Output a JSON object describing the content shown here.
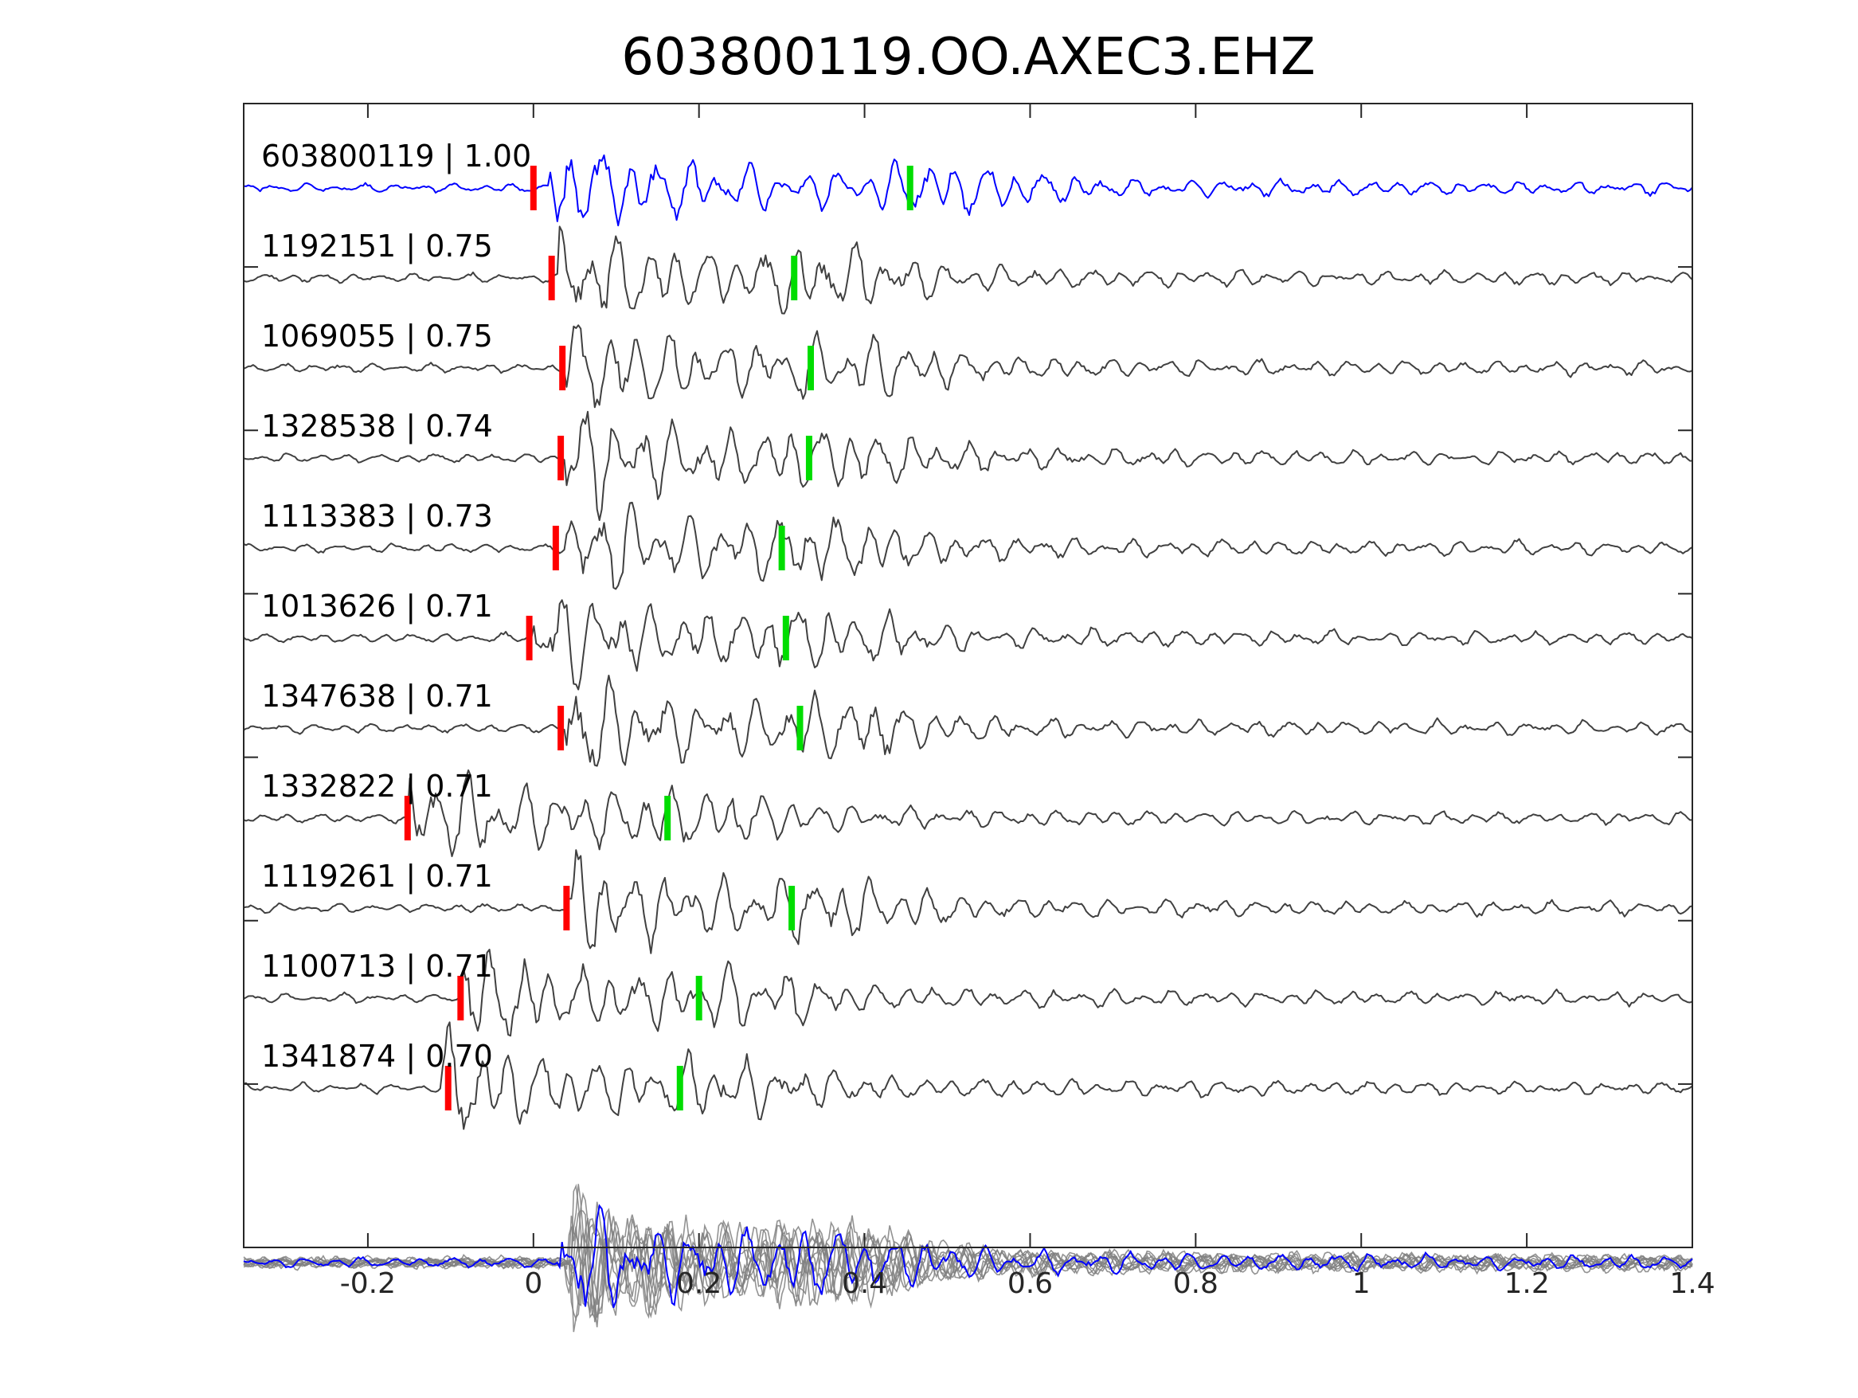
{
  "colors": {
    "template": "#0000ff",
    "matches": "#404040",
    "stack": "#808080",
    "p_pick": "#ff0000",
    "s_pick": "#00dd00",
    "axes": "#262626",
    "background": "#ffffff"
  },
  "chart_data": {
    "type": "line",
    "title": "603800119.OO.AXEC3.EHZ",
    "xlabel": "",
    "ylabel": "",
    "xlim": [
      -0.35,
      1.4
    ],
    "xticks": [
      -0.2,
      0,
      0.2,
      0.4,
      0.6,
      0.8,
      1,
      1.2,
      1.4
    ],
    "xtick_labels": [
      "-0.2",
      "0",
      "0.2",
      "0.4",
      "0.6",
      "0.8",
      "1",
      "1.2",
      "1.4"
    ],
    "grid": false,
    "legend": "none",
    "series": [
      {
        "label": "603800119 | 1.00",
        "id": "603800119",
        "cc": 1.0,
        "p_pick": 0.0,
        "s_pick": 0.455,
        "onset": 0.02,
        "seed": 11,
        "role": "template"
      },
      {
        "label": "1192151 | 0.75",
        "id": "1192151",
        "cc": 0.75,
        "p_pick": 0.022,
        "s_pick": 0.315,
        "onset": 0.03,
        "seed": 23,
        "role": "match"
      },
      {
        "label": "1069055 | 0.75",
        "id": "1069055",
        "cc": 0.75,
        "p_pick": 0.035,
        "s_pick": 0.335,
        "onset": 0.04,
        "seed": 37,
        "role": "match"
      },
      {
        "label": "1328538 | 0.74",
        "id": "1328538",
        "cc": 0.74,
        "p_pick": 0.033,
        "s_pick": 0.333,
        "onset": 0.04,
        "seed": 41,
        "role": "match"
      },
      {
        "label": "1113383 | 0.73",
        "id": "1113383",
        "cc": 0.73,
        "p_pick": 0.027,
        "s_pick": 0.3,
        "onset": 0.04,
        "seed": 53,
        "role": "match"
      },
      {
        "label": "1013626 | 0.71",
        "id": "1013626",
        "cc": 0.71,
        "p_pick": -0.005,
        "s_pick": 0.305,
        "onset": 0.0,
        "seed": 67,
        "role": "match"
      },
      {
        "label": "1347638 | 0.71",
        "id": "1347638",
        "cc": 0.71,
        "p_pick": 0.033,
        "s_pick": 0.322,
        "onset": 0.04,
        "seed": 79,
        "role": "match"
      },
      {
        "label": "1332822 | 0.71",
        "id": "1332822",
        "cc": 0.71,
        "p_pick": -0.152,
        "s_pick": 0.162,
        "onset": -0.15,
        "seed": 83,
        "role": "match"
      },
      {
        "label": "1119261 | 0.71",
        "id": "1119261",
        "cc": 0.71,
        "p_pick": 0.04,
        "s_pick": 0.312,
        "onset": 0.04,
        "seed": 97,
        "role": "match"
      },
      {
        "label": "1100713 | 0.71",
        "id": "1100713",
        "cc": 0.71,
        "p_pick": -0.088,
        "s_pick": 0.2,
        "onset": -0.09,
        "seed": 101,
        "role": "match"
      },
      {
        "label": "1341874 | 0.70",
        "id": "1341874",
        "cc": 0.7,
        "p_pick": -0.103,
        "s_pick": 0.177,
        "onset": -0.11,
        "seed": 113,
        "role": "match"
      }
    ],
    "stack": {
      "label": "",
      "description_hidden": true
    }
  }
}
